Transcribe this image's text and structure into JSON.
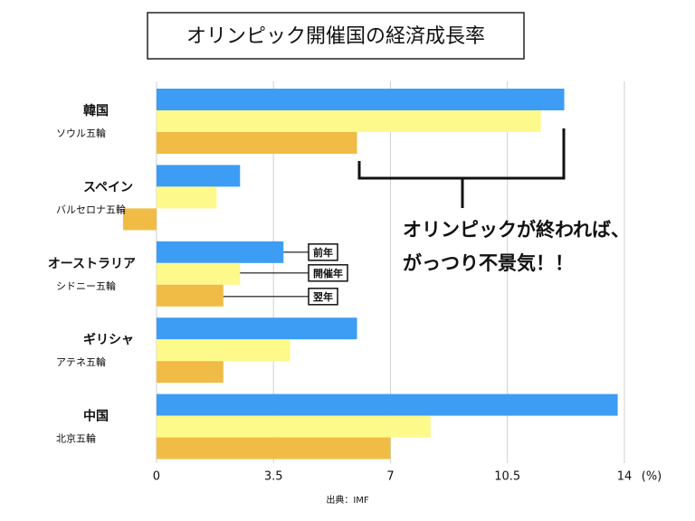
{
  "chart_data": {
    "type": "bar",
    "orientation": "horizontal",
    "title": "オリンピック開催国の経済成長率",
    "categories": [
      "韓国",
      "スペイン",
      "オーストラリア",
      "ギリシャ",
      "中国"
    ],
    "category_sublabels": [
      "ソウル五輪",
      "バルセロナ五輪",
      "シドニー五輪",
      "アテネ五輪",
      "北京五輪"
    ],
    "series": [
      {
        "name": "前年",
        "color": "#3d9df5",
        "values": [
          12.2,
          2.5,
          3.8,
          6.0,
          13.8
        ]
      },
      {
        "name": "開催年",
        "color": "#fdf98a",
        "values": [
          11.5,
          1.8,
          2.5,
          4.0,
          8.2
        ]
      },
      {
        "name": "翌年",
        "color": "#f0bc45",
        "values": [
          6.0,
          -1.0,
          2.0,
          2.0,
          7.0
        ]
      }
    ],
    "xlim": [
      -1,
      14
    ],
    "xticks": [
      0,
      3.5,
      7,
      10.5,
      14
    ],
    "x_unit": "(%)",
    "grid": true,
    "annotation": [
      "オリンピックが終われば、",
      "がっつり不景気！！"
    ],
    "source": "出典：IMF"
  }
}
